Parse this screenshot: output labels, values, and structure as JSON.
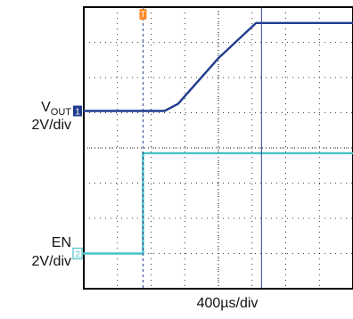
{
  "colors": {
    "vout_trace": "#1f3c8f",
    "en_trace": "#49c3c9",
    "trigger_marker": "#ff8a2a",
    "grid_border": "#000000",
    "cursor_line": "#2a3f91"
  },
  "scope": {
    "x_scale_label": "400µs/div",
    "channels": [
      {
        "marker": "1",
        "name_main": "V",
        "name_sub": "OUT",
        "scale": "2V/div"
      },
      {
        "marker": "2",
        "name_main": "EN",
        "scale": "2V/div"
      }
    ],
    "trigger_marker": "T"
  },
  "chart_data": {
    "type": "line",
    "title": "",
    "xlabel": "400µs/div",
    "ylabel": "",
    "grid": true,
    "x_divisions": 10,
    "y_divisions": 8,
    "xlim": [
      0,
      10
    ],
    "ylim": [
      0,
      8
    ],
    "series": [
      {
        "name": "VOUT",
        "x": [
          0.0,
          3.0,
          3.5,
          5.0,
          6.4,
          10.0
        ],
        "y": [
          5.05,
          5.05,
          5.25,
          6.55,
          7.55,
          7.55
        ]
      },
      {
        "name": "EN",
        "x": [
          0.0,
          2.2,
          2.2,
          10.0
        ],
        "y": [
          1.0,
          1.0,
          3.85,
          3.85
        ]
      }
    ],
    "trigger_x": 2.2,
    "cursor_x": 6.6
  }
}
